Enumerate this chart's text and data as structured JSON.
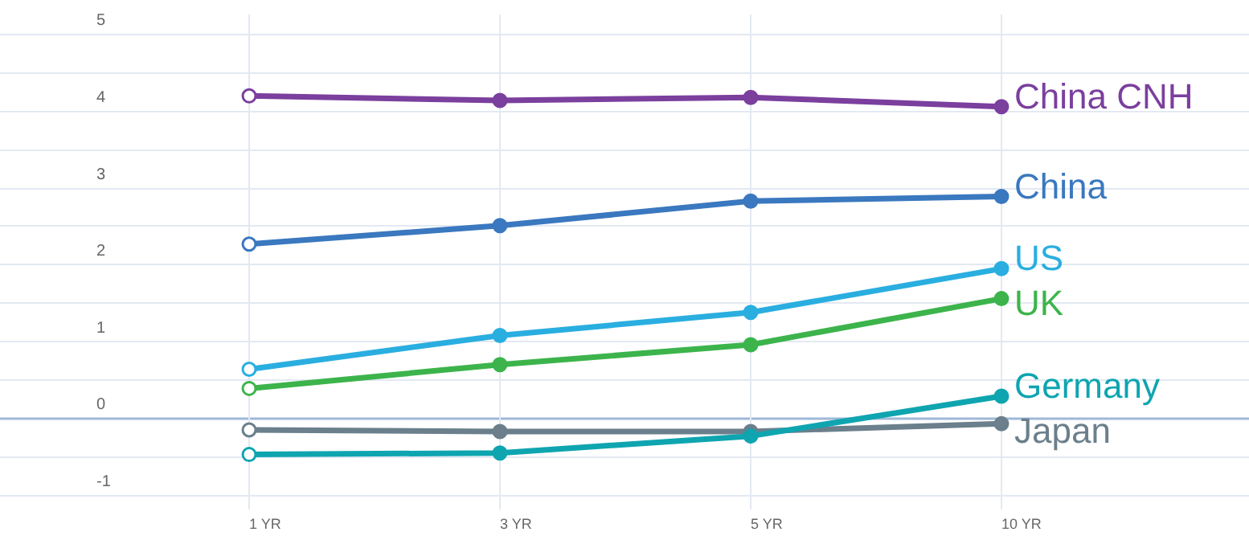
{
  "chart_data": {
    "type": "line",
    "categories": [
      "1 YR",
      "3 YR",
      "5 YR",
      "10 YR"
    ],
    "series": [
      {
        "name": "China CNH",
        "color": "#7b3f9e",
        "values": [
          4.19,
          4.13,
          4.17,
          4.05
        ]
      },
      {
        "name": "China",
        "color": "#3a78bf",
        "values": [
          2.26,
          2.5,
          2.82,
          2.88
        ]
      },
      {
        "name": "US",
        "color": "#2aaee0",
        "values": [
          0.63,
          1.07,
          1.37,
          1.94
        ]
      },
      {
        "name": "UK",
        "color": "#3cb44b",
        "values": [
          0.38,
          0.69,
          0.95,
          1.55
        ]
      },
      {
        "name": "Germany",
        "color": "#0ea5b0",
        "values": [
          -0.48,
          -0.46,
          -0.24,
          0.28
        ]
      },
      {
        "name": "Japan",
        "color": "#6b7f8c",
        "values": [
          -0.16,
          -0.18,
          -0.18,
          -0.08
        ]
      }
    ],
    "ylim": [
      -1.2,
      5.25
    ],
    "yticks": [
      {
        "value": -1,
        "label": "-1"
      },
      {
        "value": -0.5,
        "label": null
      },
      {
        "value": 0,
        "label": "0"
      },
      {
        "value": 0.5,
        "label": null
      },
      {
        "value": 1,
        "label": "1"
      },
      {
        "value": 1.5,
        "label": null
      },
      {
        "value": 2,
        "label": "2"
      },
      {
        "value": 2.5,
        "label": null
      },
      {
        "value": 3,
        "label": "3"
      },
      {
        "value": 3.5,
        "label": null
      },
      {
        "value": 4,
        "label": "4"
      },
      {
        "value": 4.5,
        "label": null
      },
      {
        "value": 5,
        "label": "5"
      }
    ],
    "ref_lines": [
      {
        "axis": "y",
        "value": 0,
        "color": "#9fb8d8"
      }
    ],
    "grid": true,
    "marker": "circle",
    "legend": false
  }
}
